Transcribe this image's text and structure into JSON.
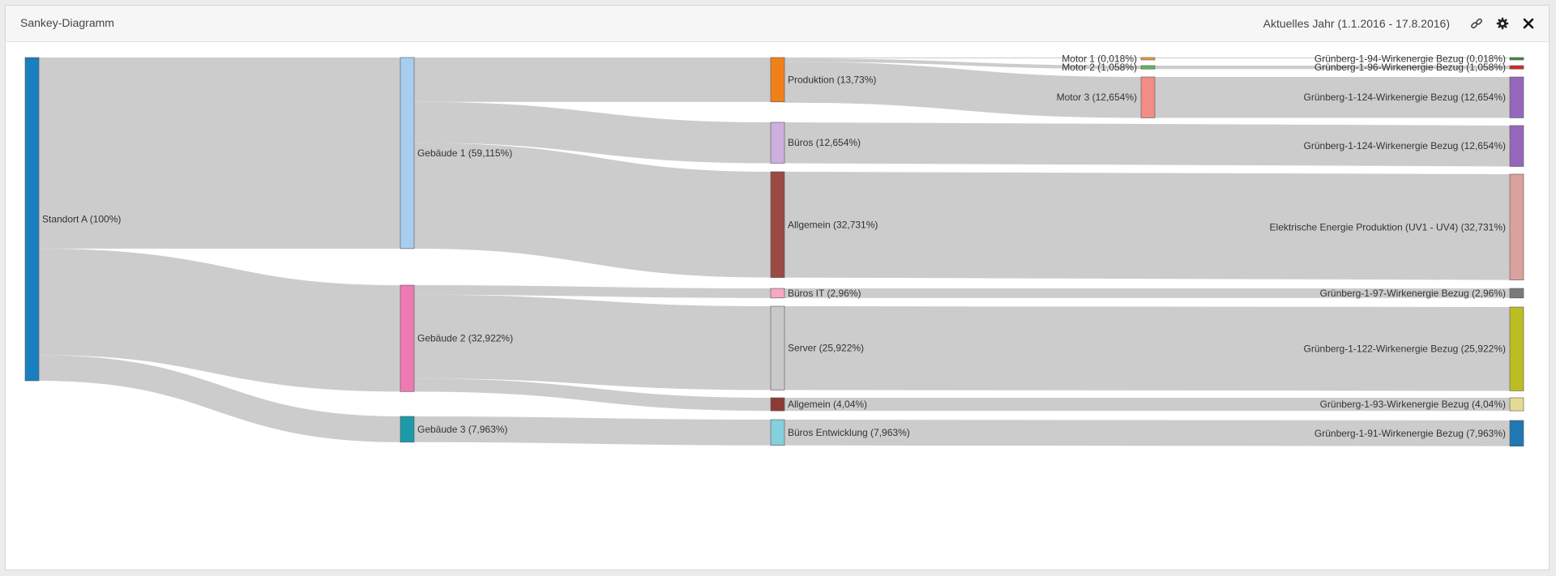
{
  "panel": {
    "title": "Sankey-Diagramm",
    "period": "Aktuelles Jahr (1.1.2016 - 17.8.2016)",
    "icons": [
      "link-icon",
      "gear-icon",
      "close-icon"
    ]
  },
  "chart_data": {
    "type": "sankey",
    "unit": "%",
    "nodes": [
      {
        "id": "standort_a",
        "label": "Standort A (100%)",
        "value": 100,
        "color": "#1a7fbf"
      },
      {
        "id": "gebaeude_1",
        "label": "Gebäude 1 (59,115%)",
        "value": 59.115,
        "color": "#a9cdee"
      },
      {
        "id": "gebaeude_2",
        "label": "Gebäude 2 (32,922%)",
        "value": 32.922,
        "color": "#ef7ab3"
      },
      {
        "id": "gebaeude_3",
        "label": "Gebäude 3 (7,963%)",
        "value": 7.963,
        "color": "#1d9aa8"
      },
      {
        "id": "produktion",
        "label": "Produktion (13,73%)",
        "value": 13.73,
        "color": "#f0811a"
      },
      {
        "id": "bueros",
        "label": "Büros (12,654%)",
        "value": 12.654,
        "color": "#cdb0de"
      },
      {
        "id": "allgemein_1",
        "label": "Allgemein (32,731%)",
        "value": 32.731,
        "color": "#9a4a42"
      },
      {
        "id": "bueros_it",
        "label": "Büros IT (2,96%)",
        "value": 2.96,
        "color": "#f4a8c4"
      },
      {
        "id": "server",
        "label": "Server (25,922%)",
        "value": 25.922,
        "color": "#c9c9c9"
      },
      {
        "id": "allgemein_2",
        "label": "Allgemein (4,04%)",
        "value": 4.04,
        "color": "#8c3c34"
      },
      {
        "id": "bueros_entwicklung",
        "label": "Büros Entwicklung (7,963%)",
        "value": 7.963,
        "color": "#86cfdc"
      },
      {
        "id": "motor_1",
        "label": "Motor 1 (0,018%)",
        "value": 0.018,
        "color": "#ef9a3c"
      },
      {
        "id": "motor_2",
        "label": "Motor 2 (1,058%)",
        "value": 1.058,
        "color": "#5cb85c"
      },
      {
        "id": "motor_3",
        "label": "Motor 3 (12,654%)",
        "value": 12.654,
        "color": "#f28c86"
      },
      {
        "id": "gb_94",
        "label": "Grünberg-1-94-Wirkenergie Bezug (0,018%)",
        "value": 0.018,
        "color": "#3f8f3f"
      },
      {
        "id": "gb_96",
        "label": "Grünberg-1-96-Wirkenergie Bezug (1,058%)",
        "value": 1.058,
        "color": "#d62728"
      },
      {
        "id": "gb_124_a",
        "label": "Grünberg-1-124-Wirkenergie Bezug (12,654%)",
        "value": 12.654,
        "color": "#9467bd"
      },
      {
        "id": "gb_124_b",
        "label": "Grünberg-1-124-Wirkenergie Bezug (12,654%)",
        "value": 12.654,
        "color": "#9467bd"
      },
      {
        "id": "elektrische_energie",
        "label": "Elektrische Energie Produktion (UV1 - UV4) (32,731%)",
        "value": 32.731,
        "color": "#d9a29c"
      },
      {
        "id": "gb_97",
        "label": "Grünberg-1-97-Wirkenergie Bezug (2,96%)",
        "value": 2.96,
        "color": "#7a7a7a"
      },
      {
        "id": "gb_122",
        "label": "Grünberg-1-122-Wirkenergie Bezug (25,922%)",
        "value": 25.922,
        "color": "#bcbd22"
      },
      {
        "id": "gb_93",
        "label": "Grünberg-1-93-Wirkenergie Bezug (4,04%)",
        "value": 4.04,
        "color": "#e3dc92"
      },
      {
        "id": "gb_91",
        "label": "Grünberg-1-91-Wirkenergie Bezug (7,963%)",
        "value": 7.963,
        "color": "#1f77b4"
      }
    ],
    "links": [
      {
        "source": "standort_a",
        "target": "gebaeude_1",
        "value": 59.115
      },
      {
        "source": "standort_a",
        "target": "gebaeude_2",
        "value": 32.922
      },
      {
        "source": "standort_a",
        "target": "gebaeude_3",
        "value": 7.963
      },
      {
        "source": "gebaeude_1",
        "target": "produktion",
        "value": 13.73
      },
      {
        "source": "gebaeude_1",
        "target": "bueros",
        "value": 12.654
      },
      {
        "source": "gebaeude_1",
        "target": "allgemein_1",
        "value": 32.731
      },
      {
        "source": "gebaeude_2",
        "target": "bueros_it",
        "value": 2.96
      },
      {
        "source": "gebaeude_2",
        "target": "server",
        "value": 25.922
      },
      {
        "source": "gebaeude_2",
        "target": "allgemein_2",
        "value": 4.04
      },
      {
        "source": "gebaeude_3",
        "target": "bueros_entwicklung",
        "value": 7.963
      },
      {
        "source": "produktion",
        "target": "motor_1",
        "value": 0.018
      },
      {
        "source": "produktion",
        "target": "motor_2",
        "value": 1.058
      },
      {
        "source": "produktion",
        "target": "motor_3",
        "value": 12.654
      },
      {
        "source": "motor_1",
        "target": "gb_94",
        "value": 0.018
      },
      {
        "source": "motor_2",
        "target": "gb_96",
        "value": 1.058
      },
      {
        "source": "motor_3",
        "target": "gb_124_a",
        "value": 12.654
      },
      {
        "source": "bueros",
        "target": "gb_124_b",
        "value": 12.654
      },
      {
        "source": "allgemein_1",
        "target": "elektrische_energie",
        "value": 32.731
      },
      {
        "source": "bueros_it",
        "target": "gb_97",
        "value": 2.96
      },
      {
        "source": "server",
        "target": "gb_122",
        "value": 25.922
      },
      {
        "source": "allgemein_2",
        "target": "gb_93",
        "value": 4.04
      },
      {
        "source": "bueros_entwicklung",
        "target": "gb_91",
        "value": 7.963
      }
    ]
  }
}
